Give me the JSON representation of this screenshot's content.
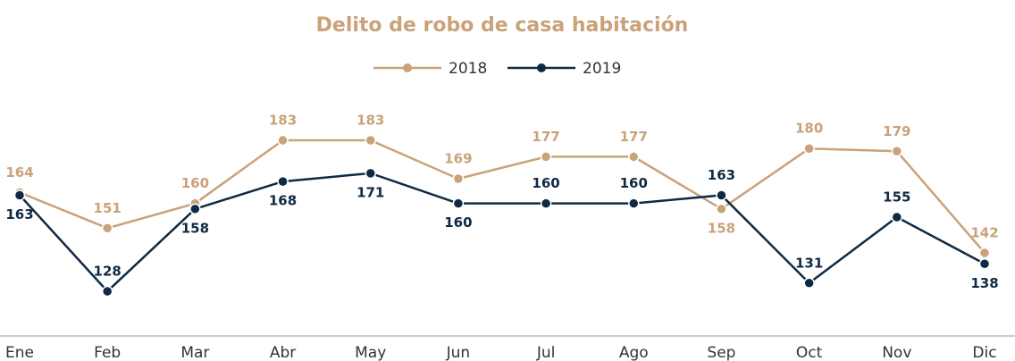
{
  "chart_data": {
    "type": "line",
    "title": "Delito de robo de casa habitación",
    "categories": [
      "Ene",
      "Feb",
      "Mar",
      "Abr",
      "May",
      "Jun",
      "Jul",
      "Ago",
      "Sep",
      "Oct",
      "Nov",
      "Dic"
    ],
    "series": [
      {
        "name": "2018",
        "color": "#c9a27a",
        "values": [
          164,
          151,
          160,
          183,
          183,
          169,
          177,
          177,
          158,
          180,
          179,
          142
        ]
      },
      {
        "name": "2019",
        "color": "#0f2a44",
        "values": [
          163,
          128,
          158,
          168,
          171,
          160,
          160,
          160,
          163,
          131,
          155,
          138
        ]
      }
    ],
    "legend": "top"
  }
}
